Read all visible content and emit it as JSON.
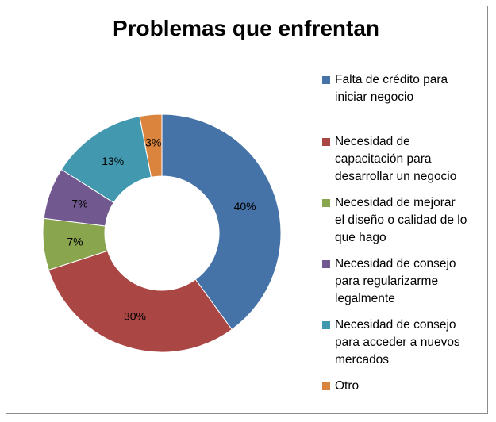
{
  "chart_data": {
    "type": "pie",
    "title": "Problemas que enfrentan",
    "donut": true,
    "legend_position": "right",
    "categories": [
      "Falta de crédito para iniciar negocio",
      "Necesidad de capacitación para desarrollar un negocio",
      "Necesidad de mejorar el diseño o calidad de lo que hago",
      "Necesidad de consejo para regularizarme legalmente",
      "Necesidad de consejo para acceder a nuevos mercados",
      "Otro"
    ],
    "values": [
      40,
      30,
      7,
      7,
      13,
      3
    ],
    "data_labels": [
      "40%",
      "30%",
      "7%",
      "7%",
      "13%",
      "3%"
    ],
    "colors": [
      "#4572A7",
      "#AA4643",
      "#89A54E",
      "#71588F",
      "#4198AF",
      "#DB843D"
    ],
    "legend_lines": [
      [
        "Falta de crédito para",
        "iniciar negocio"
      ],
      [
        "Necesidad de",
        "capacitación para",
        "desarrollar un negocio"
      ],
      [
        "Necesidad de mejorar",
        "el diseño o calidad de lo",
        "que hago"
      ],
      [
        "Necesidad de consejo",
        "para regularizarme",
        "legalmente"
      ],
      [
        "Necesidad de consejo",
        "para acceder a nuevos",
        "mercados"
      ],
      [
        "Otro"
      ]
    ]
  }
}
